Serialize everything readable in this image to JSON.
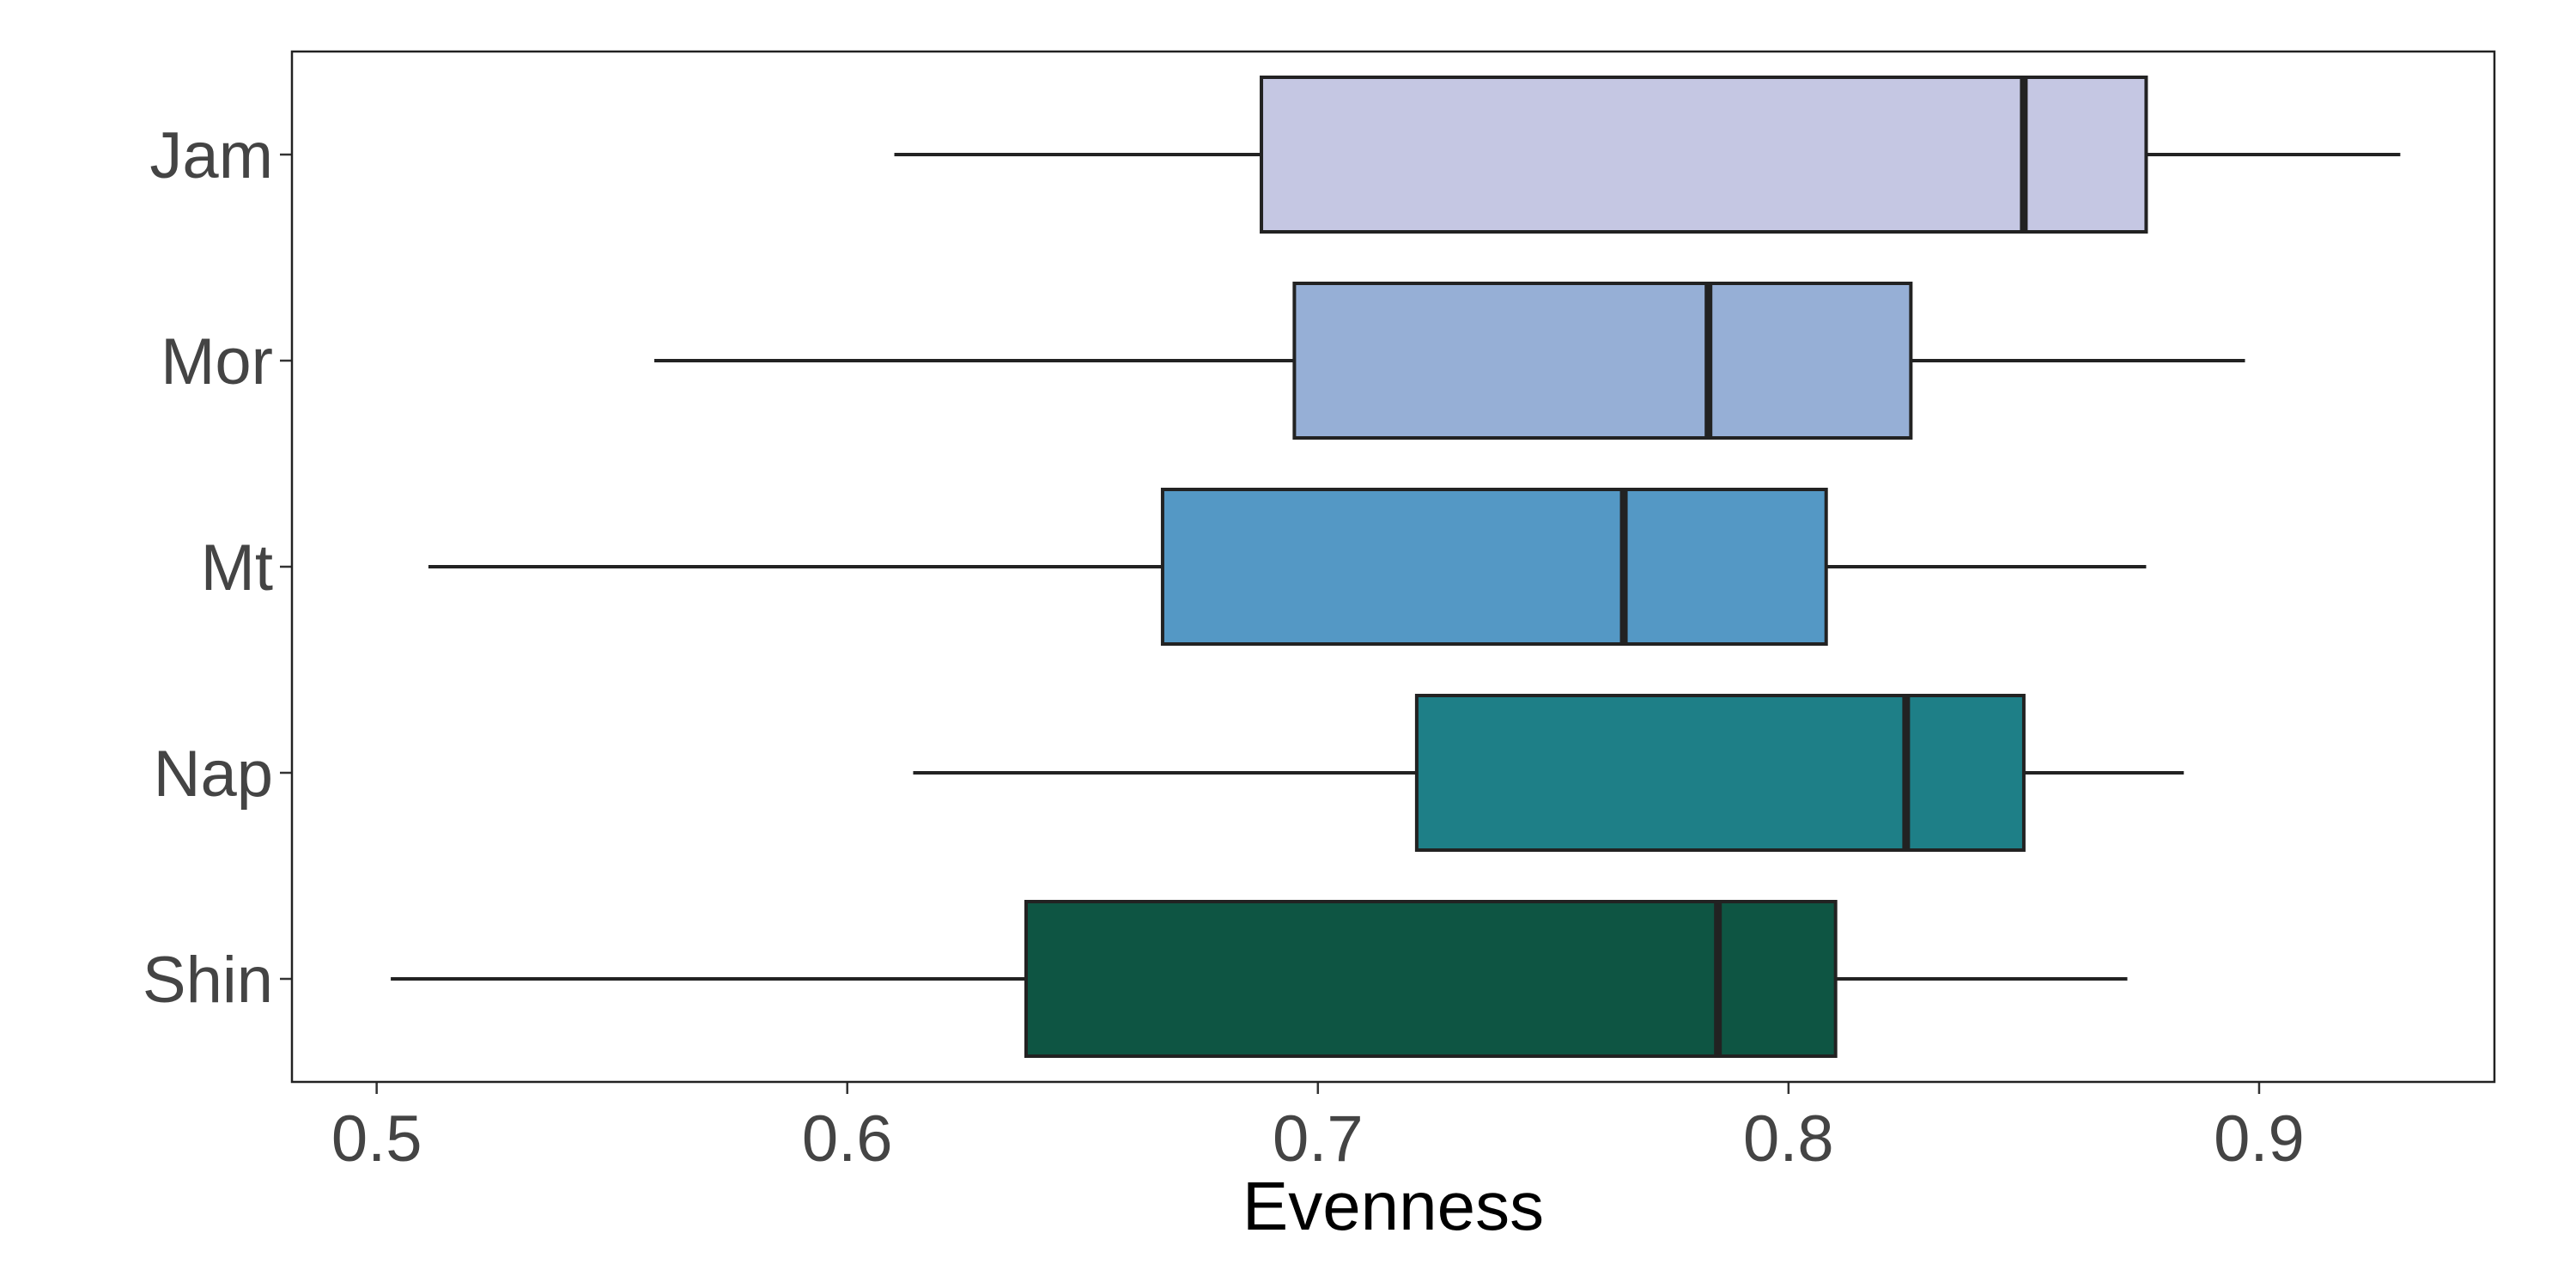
{
  "chart_data": {
    "type": "boxplot",
    "orientation": "horizontal",
    "title": "",
    "xlabel": "Evenness",
    "ylabel": "",
    "xlim": [
      0.482,
      0.95
    ],
    "x_ticks": [
      0.5,
      0.6,
      0.7,
      0.8,
      0.9
    ],
    "x_tick_labels": [
      "0.5",
      "0.6",
      "0.7",
      "0.8",
      "0.9"
    ],
    "categories": [
      "Jam",
      "Mor",
      "Mt",
      "Nap",
      "Shin"
    ],
    "series": [
      {
        "category": "Jam",
        "whisker_low": 0.61,
        "q1": 0.688,
        "median": 0.85,
        "q3": 0.876,
        "whisker_high": 0.93,
        "color": "#c5c7e3"
      },
      {
        "category": "Mor",
        "whisker_low": 0.559,
        "q1": 0.695,
        "median": 0.783,
        "q3": 0.826,
        "whisker_high": 0.897,
        "color": "#96afd6"
      },
      {
        "category": "Mt",
        "whisker_low": 0.511,
        "q1": 0.667,
        "median": 0.765,
        "q3": 0.808,
        "whisker_high": 0.876,
        "color": "#5498c5"
      },
      {
        "category": "Nap",
        "whisker_low": 0.614,
        "q1": 0.721,
        "median": 0.825,
        "q3": 0.85,
        "whisker_high": 0.884,
        "color": "#1e7f87"
      },
      {
        "category": "Shin",
        "whisker_low": 0.503,
        "q1": 0.638,
        "median": 0.785,
        "q3": 0.81,
        "whisker_high": 0.872,
        "color": "#0e5543"
      }
    ],
    "grid": false,
    "legend": "none"
  }
}
